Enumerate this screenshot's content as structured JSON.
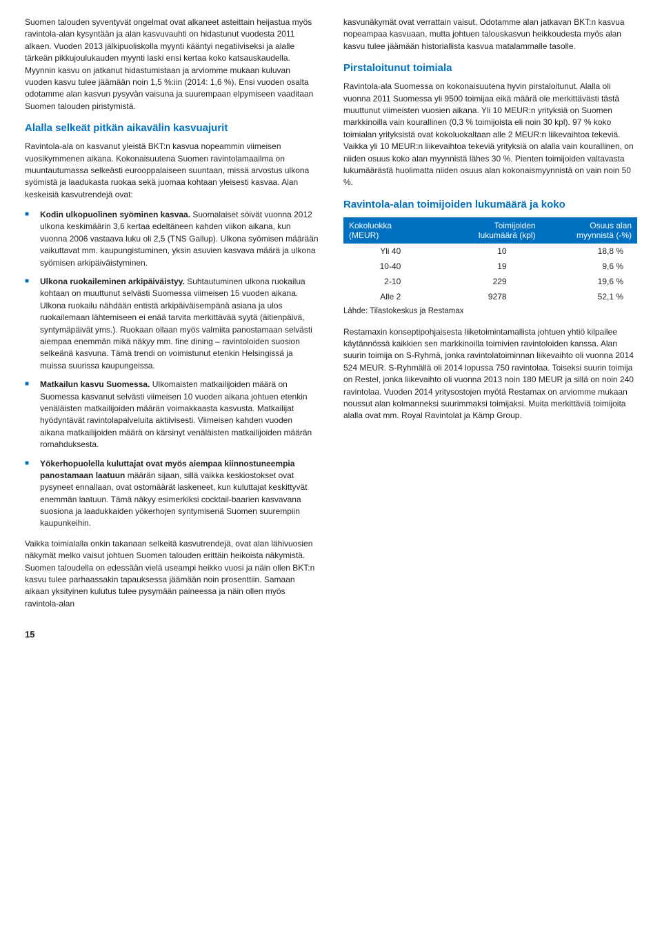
{
  "left": {
    "intro": "Suomen talouden syventyvät ongelmat ovat alkaneet asteittain heijastua myös ravintola-alan kysyntään ja alan kasvuvauhti on hidastunut vuodesta 2011 alkaen. Vuoden 2013 jälkipuoliskolla myynti kääntyi negatiiviseksi ja alalle tärkeän pikkujoulukauden myynti laski ensi kertaa koko katsauskaudella. Myynnin kasvu on jatkanut hidastumistaan ja arviomme mukaan kuluvan vuoden kasvu tulee jäämään noin 1,5 %:iin (2014: 1,6 %). Ensi vuoden osalta odotamme alan kasvun pysyvän vaisuna ja suurempaan elpymiseen vaaditaan Suomen talouden piristymistä.",
    "h1": "Alalla selkeät pitkän aikavälin kasvuajurit",
    "p1": "Ravintola-ala on kasvanut yleistä BKT:n kasvua nopeammin viimeisen vuosikymmenen aikana. Kokonaisuutena Suomen ravintolamaailma on muuntautumassa selkeästi eurooppalaiseen suuntaan, missä arvostus ulkona syömistä ja laadukasta ruokaa sekä juomaa kohtaan yleisesti kasvaa. Alan keskeisiä kasvutrendejä ovat:",
    "b1_bold": "Kodin ulkopuolinen syöminen kasvaa.",
    "b1_rest": " Suomalaiset söivät vuonna 2012 ulkona keskimäärin 3,6 kertaa edeltäneen kahden viikon aikana, kun vuonna 2006 vastaava luku oli 2,5 (TNS Gallup). Ulkona syömisen määrään vaikuttavat mm. kaupungistuminen, yksin asuvien kasvava määrä ja ulkona syömisen arkipäiväistyminen.",
    "b2_bold": "Ulkona ruokaileminen arkipäiväistyy.",
    "b2_rest": " Suhtautuminen ulkona ruokailua kohtaan on muuttunut selvästi Suomessa viimeisen 15 vuoden aikana. Ulkona ruokailu nähdään entistä arkipäiväisempänä asiana ja ulos ruokailemaan lähtemiseen ei enää tarvita merkittävää syytä (äitienpäivä, syntymäpäivät yms.). Ruokaan ollaan myös valmiita panostamaan selvästi aiempaa enemmän mikä näkyy mm. fine dining – ravintoloiden suosion selkeänä kasvuna. Tämä trendi on voimistunut etenkin Helsingissä ja muissa suurissa kaupungeissa.",
    "b3_bold": "Matkailun kasvu Suomessa.",
    "b3_rest": " Ulkomaisten matkailijoiden määrä on Suomessa kasvanut selvästi viimeisen 10 vuoden aikana johtuen etenkin venäläisten matkailijoiden määrän voimakkaasta kasvusta. Matkailijat hyödyntävät ravintolapalveluita aktiivisesti. Viimeisen kahden vuoden aikana matkailijoiden määrä on kärsinyt venäläisten matkailijoiden määrän romahduksesta.",
    "b4_bold": "Yökerhopuolella kuluttajat ovat myös aiempaa kiinnostuneempia panostamaan laatuun",
    "b4_rest": " määrän sijaan, sillä vaikka keskiostokset ovat pysyneet ennallaan, ovat ostomäärät laskeneet, kun kuluttajat keskittyvät enemmän laatuun. Tämä näkyy esimerkiksi cocktail-baarien kasvavana suosiona ja laadukkaiden yökerhojen syntymisenä Suomen suurempiin kaupunkeihin.",
    "p2": "Vaikka toimialalla onkin takanaan selkeitä kasvutrendejä, ovat alan lähivuosien näkymät melko vaisut johtuen Suomen talouden erittäin heikoista näkymistä. Suomen taloudella on edessään vielä useampi heikko vuosi ja näin ollen BKT:n kasvu tulee parhaassakin tapauksessa jäämään noin prosenttiin. Samaan aikaan yksityinen kulutus tulee pysymään paineessa ja näin ollen myös ravintola-alan"
  },
  "right": {
    "p0": "kasvunäkymät ovat verrattain vaisut. Odotamme alan jatkavan BKT:n kasvua nopeampaa kasvuaan, mutta johtuen talouskasvun heikkoudesta myös alan kasvu tulee jäämään historiallista kasvua matalammalle tasolle.",
    "h1": "Pirstaloitunut toimiala",
    "p1": "Ravintola-ala Suomessa on kokonaisuutena hyvin pirstaloitunut. Alalla oli vuonna 2011 Suomessa yli 9500 toimijaa eikä määrä ole merkittävästi tästä muuttunut viimeisten vuosien aikana. Yli 10 MEUR:n yrityksiä on Suomen markkinoilla vain kourallinen (0,3 % toimijoista eli noin 30 kpl). 97 % koko toimialan yrityksistä ovat kokoluokaltaan alle 2 MEUR:n liikevaihtoa tekeviä. Vaikka yli 10 MEUR:n liikevaihtoa tekeviä yrityksiä on alalla vain kourallinen, on niiden osuus koko alan myynnistä lähes 30 %. Pienten toimijoiden valtavasta lukumäärästä huolimatta niiden osuus alan kokonaismyynnistä on vain noin 50 %.",
    "h2": "Ravintola-alan toimijoiden lukumäärä ja koko",
    "source": "Lähde: Tilastokeskus ja Restamax",
    "p2": "Restamaxin konseptipohjaisesta liiketoimintamallista johtuen yhtiö kilpailee käytännössä kaikkien sen markkinoilla toimivien ravintoloiden kanssa. Alan suurin toimija on S-Ryhmä, jonka ravintolatoiminnan liikevaihto oli vuonna 2014 524 MEUR. S-Ryhmällä oli 2014 lopussa 750 ravintolaa. Toiseksi suurin toimija on Restel, jonka liikevaihto oli vuonna 2013 noin 180 MEUR ja sillä on noin 240 ravintolaa. Vuoden 2014 yritysostojen myötä Restamax on arviomme mukaan noussut alan kolmanneksi suurimmaksi toimijaksi. Muita merkittäviä toimijoita alalla ovat mm. Royal Ravintolat ja Kämp Group."
  },
  "table": {
    "header": [
      "Kokoluokka\n(MEUR)",
      "Toimijoiden\nlukumäärä (kpl)",
      "Osuus alan\nmyynnistä (-%)"
    ],
    "rows": [
      [
        "Yli 40",
        "10",
        "18,8 %"
      ],
      [
        "10-40",
        "19",
        "9,6 %"
      ],
      [
        "2-10",
        "229",
        "19,6 %"
      ],
      [
        "Alle 2",
        "9278",
        "52,1 %"
      ]
    ]
  },
  "pagenum": "15"
}
